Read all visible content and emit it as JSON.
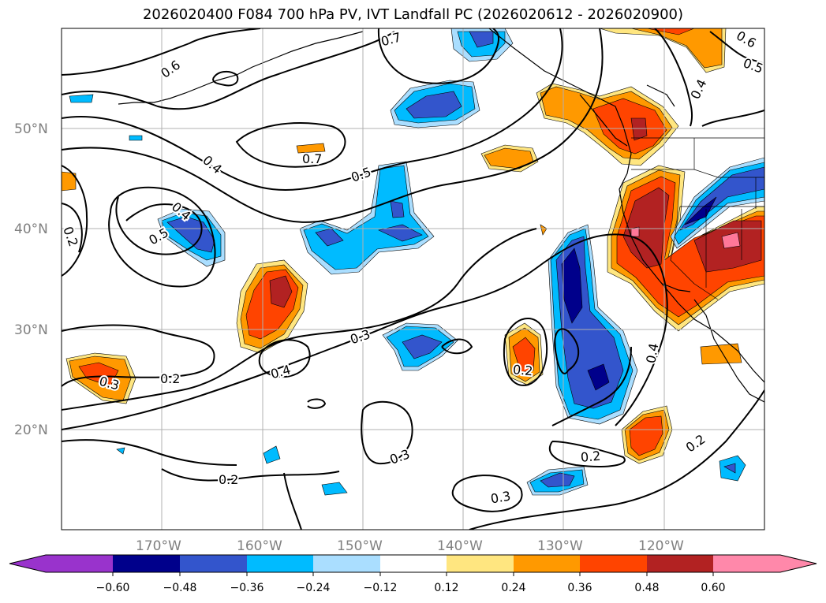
{
  "title": "2026020400 F084 700 hPa PV, IVT Landfall PC (2026020612 - 2026020900)",
  "map": {
    "lat_labels": [
      "50°N",
      "40°N",
      "30°N",
      "20°N"
    ],
    "lon_labels": [
      "170°W",
      "160°W",
      "150°W",
      "140°W",
      "130°W",
      "120°W"
    ],
    "contour_labels": [
      "0.7",
      "0.6",
      "0.6",
      "0.5",
      "0.4",
      "0.4",
      "0.7",
      "0.5",
      "0.4",
      "0.5",
      "0.2",
      "0.3",
      "0.2",
      "0.3",
      "0.4",
      "0.2",
      "0.4",
      "0.3",
      "0.2",
      "0.3",
      "0.2",
      "0.2"
    ]
  },
  "colorbar": {
    "ticks": [
      "−0.60",
      "−0.48",
      "−0.36",
      "−0.24",
      "−0.12",
      "0.12",
      "0.24",
      "0.36",
      "0.48",
      "0.60"
    ],
    "colors": [
      "#9933cc",
      "#00008b",
      "#3355cc",
      "#00bbff",
      "#aadeff",
      "#ffffff",
      "#ffe680",
      "#ff9900",
      "#ff4400",
      "#b22222",
      "#ff7799",
      "#ff88aa"
    ]
  }
}
